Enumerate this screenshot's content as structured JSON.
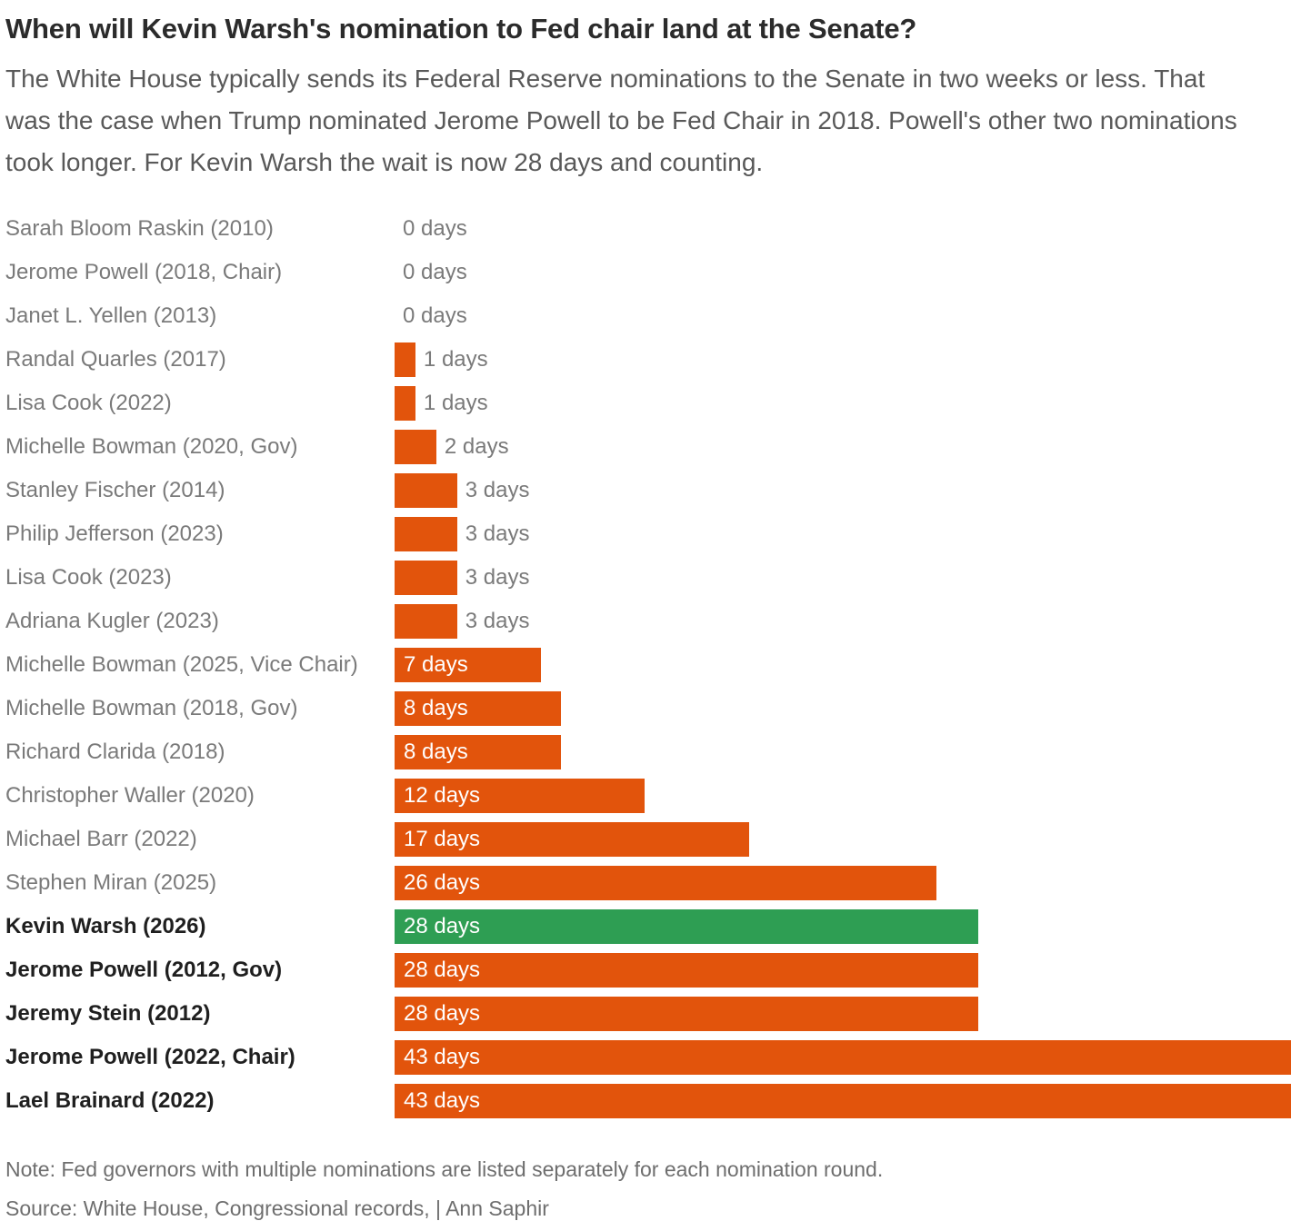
{
  "header": {
    "title": "When will Kevin Warsh's nomination to Fed chair land at the Senate?",
    "subtitle": "The White House typically sends its Federal Reserve nominations to the Senate in two weeks or less. That was the case when Trump nominated Jerome Powell to be Fed Chair in 2018. Powell's other two nominations took longer. For Kevin Warsh the wait is now 28 days and counting."
  },
  "chart_data": {
    "type": "bar",
    "orientation": "horizontal",
    "unit": "days",
    "xmax": 43,
    "inside_label_min": 7,
    "bar_color": "#e2540c",
    "highlight_color": "#2e9e53",
    "grid": false,
    "legend": false,
    "rows": [
      {
        "name": "Sarah Bloom Raskin (2010)",
        "value": 0,
        "label": "0 days",
        "bold": false,
        "highlight": false
      },
      {
        "name": "Jerome Powell (2018, Chair)",
        "value": 0,
        "label": "0 days",
        "bold": false,
        "highlight": false
      },
      {
        "name": "Janet L. Yellen (2013)",
        "value": 0,
        "label": "0 days",
        "bold": false,
        "highlight": false
      },
      {
        "name": "Randal Quarles (2017)",
        "value": 1,
        "label": "1 days",
        "bold": false,
        "highlight": false
      },
      {
        "name": "Lisa Cook (2022)",
        "value": 1,
        "label": "1 days",
        "bold": false,
        "highlight": false
      },
      {
        "name": "Michelle Bowman (2020, Gov)",
        "value": 2,
        "label": "2 days",
        "bold": false,
        "highlight": false
      },
      {
        "name": "Stanley Fischer (2014)",
        "value": 3,
        "label": "3 days",
        "bold": false,
        "highlight": false
      },
      {
        "name": "Philip Jefferson (2023)",
        "value": 3,
        "label": "3 days",
        "bold": false,
        "highlight": false
      },
      {
        "name": "Lisa Cook (2023)",
        "value": 3,
        "label": "3 days",
        "bold": false,
        "highlight": false
      },
      {
        "name": "Adriana Kugler (2023)",
        "value": 3,
        "label": "3 days",
        "bold": false,
        "highlight": false
      },
      {
        "name": "Michelle Bowman (2025, Vice Chair)",
        "value": 7,
        "label": "7 days",
        "bold": false,
        "highlight": false
      },
      {
        "name": "Michelle Bowman (2018, Gov)",
        "value": 8,
        "label": "8 days",
        "bold": false,
        "highlight": false
      },
      {
        "name": "Richard Clarida (2018)",
        "value": 8,
        "label": "8 days",
        "bold": false,
        "highlight": false
      },
      {
        "name": "Christopher Waller (2020)",
        "value": 12,
        "label": "12 days",
        "bold": false,
        "highlight": false
      },
      {
        "name": "Michael Barr (2022)",
        "value": 17,
        "label": "17 days",
        "bold": false,
        "highlight": false
      },
      {
        "name": "Stephen Miran (2025)",
        "value": 26,
        "label": "26 days",
        "bold": false,
        "highlight": false
      },
      {
        "name": "Kevin Warsh (2026)",
        "value": 28,
        "label": "28 days",
        "bold": true,
        "highlight": true
      },
      {
        "name": "Jerome Powell (2012, Gov)",
        "value": 28,
        "label": "28 days",
        "bold": true,
        "highlight": false
      },
      {
        "name": "Jeremy Stein (2012)",
        "value": 28,
        "label": "28 days",
        "bold": true,
        "highlight": false
      },
      {
        "name": "Jerome Powell (2022, Chair)",
        "value": 43,
        "label": "43 days",
        "bold": true,
        "highlight": false
      },
      {
        "name": "Lael Brainard (2022)",
        "value": 43,
        "label": "43 days",
        "bold": true,
        "highlight": false
      }
    ]
  },
  "footer": {
    "note": "Note: Fed governors with multiple nominations are listed separately for each nomination round.",
    "source": "Source: White House, Congressional records,  | Ann Saphir"
  }
}
